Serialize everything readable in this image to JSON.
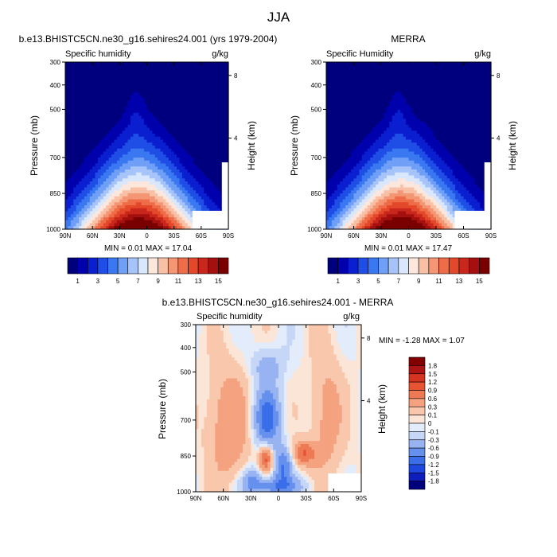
{
  "figure": {
    "title": "JJA"
  },
  "palette": {
    "full": [
      "#00007f",
      "#0000ad",
      "#0a1fcf",
      "#1e4ee6",
      "#3a78f2",
      "#6f9ff7",
      "#a7c4fa",
      "#d9e7fc",
      "#fde7dc",
      "#f9c0a5",
      "#f49674",
      "#ef6c48",
      "#e4482a",
      "#c9271b",
      "#a3100f",
      "#7a0000"
    ],
    "diff": [
      "#00007f",
      "#0d1ebd",
      "#1e48dd",
      "#3a6ee8",
      "#6690ee",
      "#98b3f2",
      "#c6d6f7",
      "#e3ecfb",
      "#fbe5d6",
      "#f8c7ac",
      "#f4a27f",
      "#ee7a55",
      "#e65434",
      "#d43420",
      "#ad1515",
      "#820000"
    ]
  },
  "charts": [
    {
      "id": "model",
      "title": "b.e13.BHISTC5CN.ne30_g16.sehires24.001 (yrs 1979-2004)",
      "left_label": "Specific humidity",
      "right_label": "g/kg",
      "stats": "MIN =  0.01  MAX =  17.04",
      "chart_data": {
        "type": "heatmap",
        "field": "specific humidity",
        "units": "g/kg",
        "min": 0.01,
        "max": 17.04,
        "xlabel": "",
        "ylabel": "Pressure (mb)",
        "y2label": "Height (km)",
        "x_ticks": [
          "90N",
          "60N",
          "30N",
          "0",
          "30S",
          "60S",
          "90S"
        ],
        "y_ticks": [
          "300",
          "400",
          "500",
          "700",
          "850",
          "1000"
        ],
        "y2_ticks": [
          "8",
          "4"
        ],
        "colorbar_labels": [
          "1",
          "3",
          "5",
          "7",
          "9",
          "11",
          "13",
          "15"
        ]
      }
    },
    {
      "id": "obs",
      "title": "MERRA",
      "left_label": "Specific Humidity",
      "right_label": "g/kg",
      "stats": "MIN =  0.01  MAX =  17.47",
      "chart_data": {
        "type": "heatmap",
        "field": "specific humidity",
        "units": "g/kg",
        "min": 0.01,
        "max": 17.47,
        "xlabel": "",
        "ylabel": "Pressure (mb)",
        "y2label": "Height (km)",
        "x_ticks": [
          "90N",
          "60N",
          "30N",
          "0",
          "30S",
          "60S",
          "90S"
        ],
        "y_ticks": [
          "300",
          "400",
          "500",
          "700",
          "850",
          "1000"
        ],
        "y2_ticks": [
          "8",
          "4"
        ],
        "colorbar_labels": [
          "1",
          "3",
          "5",
          "7",
          "9",
          "11",
          "13",
          "15"
        ]
      }
    },
    {
      "id": "diff",
      "title": "b.e13.BHISTC5CN.ne30_g16.sehires24.001 - MERRA",
      "left_label": "Specific humidity",
      "right_label": "g/kg",
      "stats": "MIN =  -1.28  MAX =   1.07",
      "chart_data": {
        "type": "heatmap",
        "field": "specific humidity difference",
        "units": "g/kg",
        "min": -1.28,
        "max": 1.07,
        "xlabel": "",
        "ylabel": "Pressure (mb)",
        "y2label": "Height (km)",
        "x_ticks": [
          "90N",
          "60N",
          "30N",
          "0",
          "30S",
          "60S",
          "90S"
        ],
        "y_ticks": [
          "300",
          "400",
          "500",
          "700",
          "850",
          "1000"
        ],
        "y2_ticks": [
          "8",
          "4"
        ],
        "colorbar_labels": [
          "1.8",
          "1.5",
          "1.2",
          "0.9",
          "0.6",
          "0.3",
          "0.1",
          "0",
          "-0.1",
          "-0.3",
          "-0.6",
          "-0.9",
          "-1.2",
          "-1.5",
          "-1.8"
        ]
      }
    }
  ]
}
